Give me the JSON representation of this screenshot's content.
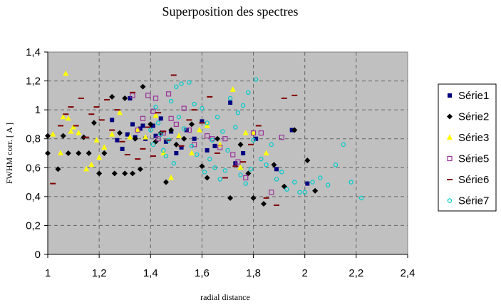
{
  "chart_data": {
    "type": "scatter",
    "title": "Superposition des spectres",
    "xlabel": "radial distance",
    "ylabel": "FWHM corr. [ A ]",
    "xlim": [
      1,
      2.4
    ],
    "ylim": [
      0,
      1.4
    ],
    "xticks": [
      "1",
      "1,2",
      "1,4",
      "1,6",
      "1,8",
      "2",
      "2,2",
      "2,4"
    ],
    "yticks": [
      "0",
      "0,2",
      "0,4",
      "0,6",
      "0,8",
      "1",
      "1,2",
      "1,4"
    ],
    "grid": true,
    "legend": "right",
    "series": [
      {
        "name": "Série1",
        "marker": "square",
        "color": "#000080",
        "points": [
          [
            1.25,
            0.93
          ],
          [
            1.27,
            0.79
          ],
          [
            1.29,
            0.73
          ],
          [
            1.31,
            0.83
          ],
          [
            1.32,
            1.08
          ],
          [
            1.33,
            0.9
          ],
          [
            1.34,
            0.81
          ],
          [
            1.36,
            0.87
          ],
          [
            1.37,
            0.89
          ],
          [
            1.38,
            0.8
          ],
          [
            1.41,
            0.89
          ],
          [
            1.42,
            0.82
          ],
          [
            1.44,
            0.94
          ],
          [
            1.46,
            0.78
          ],
          [
            1.48,
            0.85
          ],
          [
            1.5,
            0.7
          ],
          [
            1.52,
            0.74
          ],
          [
            1.54,
            0.86
          ],
          [
            1.57,
            0.8
          ],
          [
            1.6,
            0.92
          ],
          [
            1.62,
            0.72
          ],
          [
            1.65,
            0.75
          ],
          [
            1.71,
            1.05
          ],
          [
            1.73,
            0.63
          ],
          [
            1.76,
            0.7
          ],
          [
            1.81,
            0.8
          ],
          [
            1.89,
            0.59
          ],
          [
            1.95,
            0.86
          ],
          [
            2.01,
            0.49
          ]
        ]
      },
      {
        "name": "Série2",
        "marker": "diamond",
        "color": "#000000",
        "points": [
          [
            1.0,
            0.82
          ],
          [
            1.0,
            0.7
          ],
          [
            1.04,
            0.59
          ],
          [
            1.06,
            0.82
          ],
          [
            1.08,
            0.7
          ],
          [
            1.12,
            0.7
          ],
          [
            1.14,
            0.81
          ],
          [
            1.16,
            0.7
          ],
          [
            1.18,
            0.91
          ],
          [
            1.2,
            0.56
          ],
          [
            1.22,
            0.7
          ],
          [
            1.25,
            1.09
          ],
          [
            1.26,
            0.56
          ],
          [
            1.28,
            0.84
          ],
          [
            1.3,
            0.56
          ],
          [
            1.3,
            1.08
          ],
          [
            1.33,
            0.56
          ],
          [
            1.34,
            0.8
          ],
          [
            1.36,
            0.59
          ],
          [
            1.37,
            1.16
          ],
          [
            1.4,
            0.9
          ],
          [
            1.42,
            0.78
          ],
          [
            1.44,
            0.84
          ],
          [
            1.46,
            0.5
          ],
          [
            1.48,
            0.86
          ],
          [
            1.5,
            0.76
          ],
          [
            1.53,
            0.8
          ],
          [
            1.56,
            0.9
          ],
          [
            1.6,
            0.61
          ],
          [
            1.62,
            0.53
          ],
          [
            1.66,
            0.8
          ],
          [
            1.71,
            0.39
          ],
          [
            1.75,
            0.76
          ],
          [
            1.78,
            0.56
          ],
          [
            1.8,
            0.39
          ],
          [
            1.84,
            0.35
          ],
          [
            1.88,
            0.62
          ],
          [
            1.92,
            0.47
          ],
          [
            1.96,
            0.86
          ],
          [
            2.01,
            0.65
          ],
          [
            2.04,
            0.44
          ]
        ]
      },
      {
        "name": "Série3",
        "marker": "triangle",
        "color": "#ffff00",
        "points": [
          [
            1.02,
            0.83
          ],
          [
            1.05,
            0.7
          ],
          [
            1.06,
            0.95
          ],
          [
            1.07,
            1.25
          ],
          [
            1.08,
            0.94
          ],
          [
            1.09,
            0.85
          ],
          [
            1.1,
            0.88
          ],
          [
            1.12,
            0.84
          ],
          [
            1.15,
            0.59
          ],
          [
            1.17,
            0.62
          ],
          [
            1.19,
            0.79
          ],
          [
            1.2,
            0.67
          ],
          [
            1.22,
            0.74
          ],
          [
            1.25,
            0.83
          ],
          [
            1.28,
            0.98
          ],
          [
            1.32,
            0.81
          ],
          [
            1.35,
            0.86
          ],
          [
            1.38,
            0.81
          ],
          [
            1.42,
            0.96
          ],
          [
            1.45,
            0.7
          ],
          [
            1.48,
            0.53
          ],
          [
            1.51,
            0.82
          ],
          [
            1.56,
            0.7
          ],
          [
            1.59,
            0.86
          ],
          [
            1.62,
            0.89
          ],
          [
            1.67,
            0.76
          ],
          [
            1.72,
            1.14
          ],
          [
            1.75,
            0.6
          ],
          [
            1.77,
            0.84
          ],
          [
            1.8,
            0.84
          ],
          [
            1.85,
            0.7
          ]
        ]
      },
      {
        "name": "Série5",
        "marker": "square-open",
        "color": "#993399",
        "points": [
          [
            1.33,
            1.1
          ],
          [
            1.35,
            0.86
          ],
          [
            1.37,
            0.94
          ],
          [
            1.39,
            1.1
          ],
          [
            1.41,
            0.99
          ],
          [
            1.42,
            1.08
          ],
          [
            1.43,
            0.8
          ],
          [
            1.45,
            0.84
          ],
          [
            1.47,
            1.11
          ],
          [
            1.48,
            0.94
          ],
          [
            1.5,
            0.9
          ],
          [
            1.53,
            1.01
          ],
          [
            1.55,
            0.86
          ],
          [
            1.57,
            0.76
          ],
          [
            1.62,
            0.82
          ],
          [
            1.64,
            0.8
          ],
          [
            1.67,
            0.74
          ],
          [
            1.69,
            0.8
          ],
          [
            1.72,
            0.69
          ],
          [
            1.74,
            0.64
          ],
          [
            1.77,
            0.53
          ],
          [
            1.8,
            0.84
          ],
          [
            1.83,
            0.84
          ],
          [
            1.87,
            0.43
          ],
          [
            1.91,
            0.81
          ]
        ]
      },
      {
        "name": "Série6",
        "marker": "dash",
        "color": "#800000",
        "points": [
          [
            1.02,
            0.49
          ],
          [
            1.05,
            0.89
          ],
          [
            1.07,
            0.97
          ],
          [
            1.09,
            1.02
          ],
          [
            1.11,
            0.89
          ],
          [
            1.13,
            1.08
          ],
          [
            1.15,
            0.81
          ],
          [
            1.17,
            0.97
          ],
          [
            1.19,
            1.02
          ],
          [
            1.21,
            0.93
          ],
          [
            1.23,
            1.07
          ],
          [
            1.25,
            0.86
          ],
          [
            1.27,
            1.0
          ],
          [
            1.29,
            0.78
          ],
          [
            1.31,
            0.69
          ],
          [
            1.33,
            1.12
          ],
          [
            1.35,
            0.66
          ],
          [
            1.37,
            0.73
          ],
          [
            1.39,
            0.88
          ],
          [
            1.41,
            0.68
          ],
          [
            1.43,
            0.98
          ],
          [
            1.45,
            0.85
          ],
          [
            1.47,
            0.79
          ],
          [
            1.49,
            1.24
          ],
          [
            1.52,
            0.75
          ],
          [
            1.55,
            0.93
          ],
          [
            1.57,
            1.0
          ],
          [
            1.6,
            0.91
          ],
          [
            1.63,
            1.09
          ],
          [
            1.66,
            0.7
          ],
          [
            1.69,
            0.53
          ],
          [
            1.73,
            0.61
          ],
          [
            1.76,
            0.64
          ],
          [
            1.79,
            0.76
          ],
          [
            1.82,
            0.89
          ],
          [
            1.85,
            0.39
          ],
          [
            1.89,
            0.34
          ],
          [
            1.92,
            1.08
          ],
          [
            1.96,
            1.1
          ]
        ]
      },
      {
        "name": "Série7",
        "marker": "circle",
        "color": "#00cccc",
        "points": [
          [
            1.4,
            0.86
          ],
          [
            1.41,
            0.76
          ],
          [
            1.42,
            1.02
          ],
          [
            1.43,
            0.91
          ],
          [
            1.44,
            0.83
          ],
          [
            1.45,
            0.72
          ],
          [
            1.46,
            0.68
          ],
          [
            1.47,
            0.79
          ],
          [
            1.48,
            1.06
          ],
          [
            1.49,
            0.63
          ],
          [
            1.5,
            1.16
          ],
          [
            1.51,
            0.95
          ],
          [
            1.52,
            1.18
          ],
          [
            1.53,
            0.87
          ],
          [
            1.55,
            1.19
          ],
          [
            1.56,
            0.75
          ],
          [
            1.57,
            1.04
          ],
          [
            1.58,
            0.69
          ],
          [
            1.6,
            1.01
          ],
          [
            1.61,
            0.57
          ],
          [
            1.62,
            0.91
          ],
          [
            1.63,
            0.66
          ],
          [
            1.64,
            0.79
          ],
          [
            1.65,
            0.6
          ],
          [
            1.66,
            0.95
          ],
          [
            1.67,
            0.52
          ],
          [
            1.68,
            0.85
          ],
          [
            1.69,
            0.58
          ],
          [
            1.7,
            0.72
          ],
          [
            1.71,
            1.08
          ],
          [
            1.73,
            0.88
          ],
          [
            1.74,
            0.98
          ],
          [
            1.75,
            0.55
          ],
          [
            1.76,
            1.03
          ],
          [
            1.77,
            0.49
          ],
          [
            1.78,
            1.12
          ],
          [
            1.79,
            0.59
          ],
          [
            1.8,
            0.79
          ],
          [
            1.81,
            1.21
          ],
          [
            1.83,
            0.66
          ],
          [
            1.85,
            0.62
          ],
          [
            1.87,
            0.76
          ],
          [
            1.89,
            0.52
          ],
          [
            1.91,
            0.57
          ],
          [
            1.93,
            0.45
          ],
          [
            1.96,
            0.5
          ],
          [
            1.98,
            0.43
          ],
          [
            2.0,
            0.43
          ],
          [
            2.03,
            0.5
          ],
          [
            2.06,
            0.53
          ],
          [
            2.09,
            0.48
          ],
          [
            2.12,
            0.62
          ],
          [
            2.15,
            0.76
          ],
          [
            2.18,
            0.5
          ],
          [
            2.22,
            0.39
          ]
        ]
      }
    ]
  }
}
